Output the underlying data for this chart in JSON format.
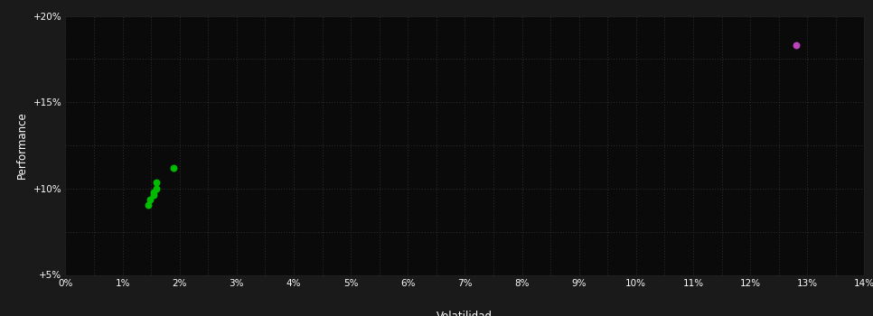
{
  "background_color": "#1a1a1a",
  "plot_bg_color": "#0a0a0a",
  "text_color": "#ffffff",
  "xlabel": "Volatilidad",
  "ylabel": "Performance",
  "xlim": [
    0,
    0.14
  ],
  "ylim": [
    0.05,
    0.2
  ],
  "xticks": [
    0.0,
    0.01,
    0.02,
    0.03,
    0.04,
    0.05,
    0.06,
    0.07,
    0.08,
    0.09,
    0.1,
    0.11,
    0.12,
    0.13,
    0.14
  ],
  "yticks": [
    0.05,
    0.1,
    0.15,
    0.2
  ],
  "green_points": [
    [
      0.019,
      0.112
    ],
    [
      0.016,
      0.1035
    ],
    [
      0.016,
      0.1
    ],
    [
      0.0155,
      0.098
    ],
    [
      0.0155,
      0.0963
    ],
    [
      0.0148,
      0.0935
    ],
    [
      0.0145,
      0.0905
    ]
  ],
  "magenta_points": [
    [
      0.128,
      0.183
    ]
  ],
  "green_color": "#00bb00",
  "magenta_color": "#bb44bb",
  "point_size": 22,
  "grid_color": "#2a2a2a",
  "grid_linestyle": ":",
  "grid_linewidth": 0.8,
  "tick_fontsize": 7.5,
  "label_fontsize": 8.5
}
